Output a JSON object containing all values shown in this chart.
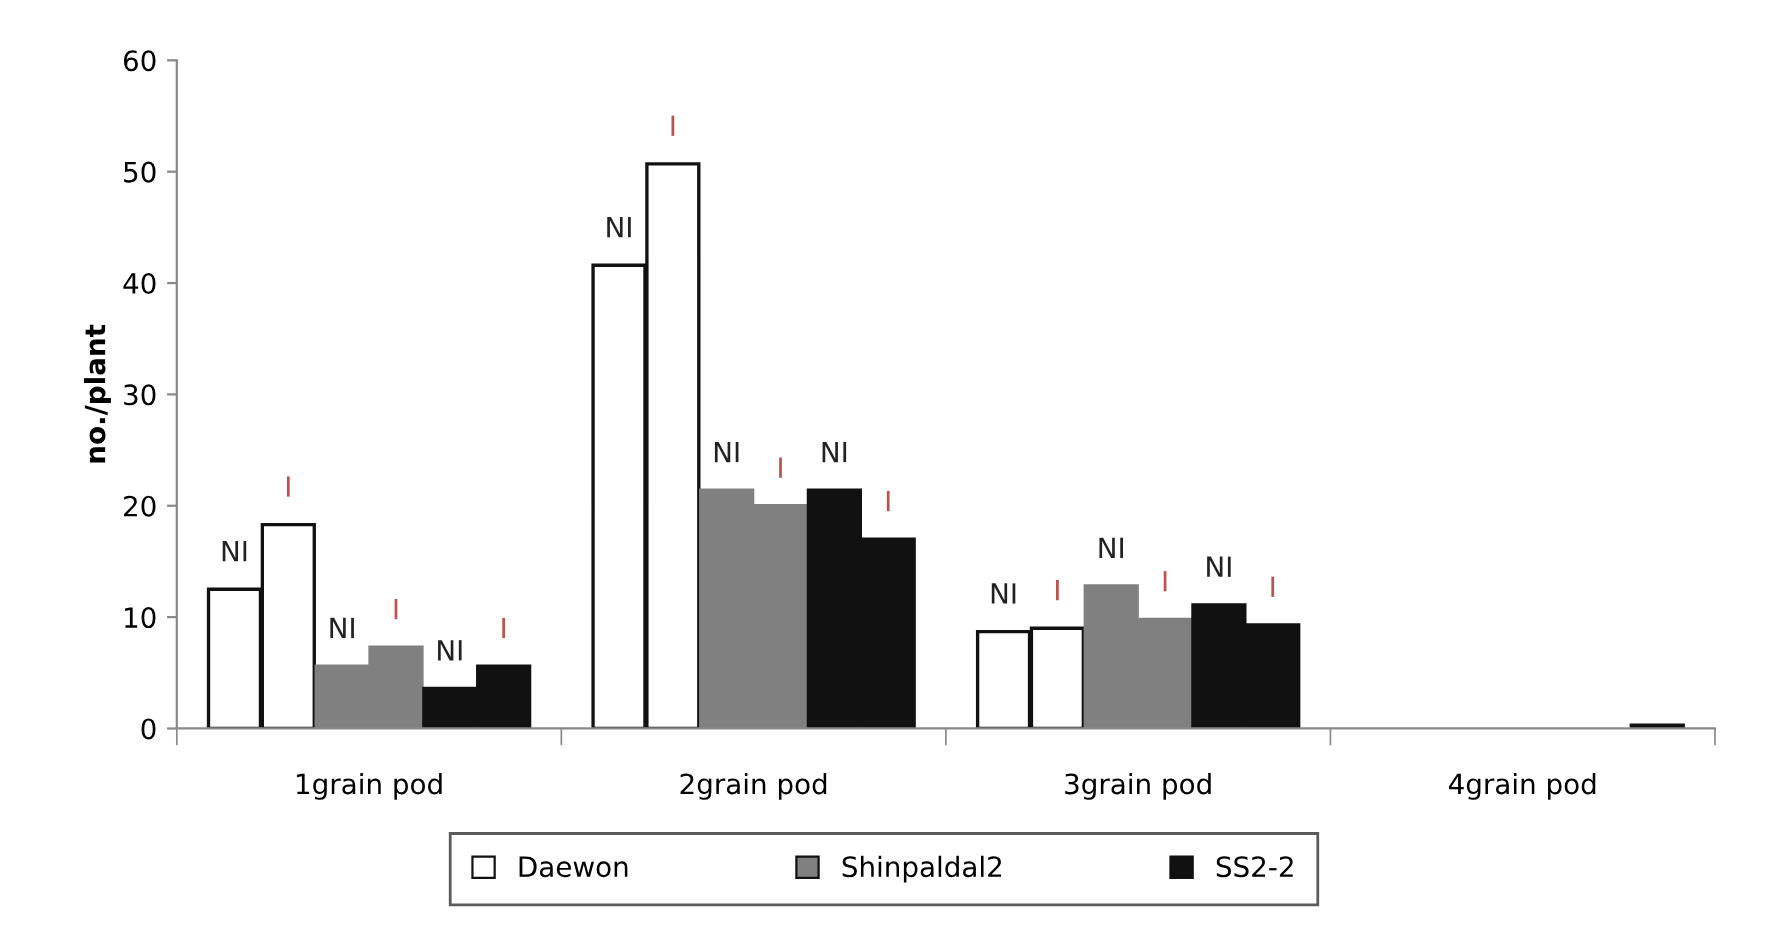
{
  "chart_data": {
    "type": "bar",
    "ylabel": "no./plant",
    "categories": [
      "1grain pod",
      "2grain pod",
      "3grain pod",
      "4grain pod"
    ],
    "series": [
      {
        "name": "Daewon",
        "color": "#ffffff",
        "values": [
          12.5,
          41.6,
          8.7,
          null
        ],
        "value_labels": [
          "NI",
          "NI",
          "NI",
          null
        ]
      },
      {
        "color": "#ffffff",
        "values": [
          18.3,
          50.7,
          9.0,
          null
        ],
        "value_labels": [
          "I",
          "I",
          "I",
          null
        ]
      },
      {
        "name": "Shinpaldal2",
        "color": "#808080",
        "values": [
          5.6,
          21.4,
          12.8,
          null
        ],
        "value_labels": [
          "NI",
          "NI",
          "NI",
          null
        ]
      },
      {
        "color": "#808080",
        "values": [
          7.3,
          20.0,
          9.8,
          null
        ],
        "value_labels": [
          "I",
          "I",
          "I",
          null
        ]
      },
      {
        "name": "SS2-2",
        "color": "#111111",
        "values": [
          3.6,
          21.4,
          11.1,
          null
        ],
        "value_labels": [
          "NI",
          "NI",
          "NI",
          null
        ]
      },
      {
        "color": "#111111",
        "values": [
          5.6,
          17.0,
          9.3,
          0.3
        ],
        "value_labels": [
          "I",
          "I",
          "I",
          null
        ]
      }
    ],
    "ylim": [
      0,
      60
    ],
    "yticks": [
      0,
      10,
      20,
      30,
      40,
      50,
      60
    ],
    "grid": false,
    "legend": "bottom"
  }
}
